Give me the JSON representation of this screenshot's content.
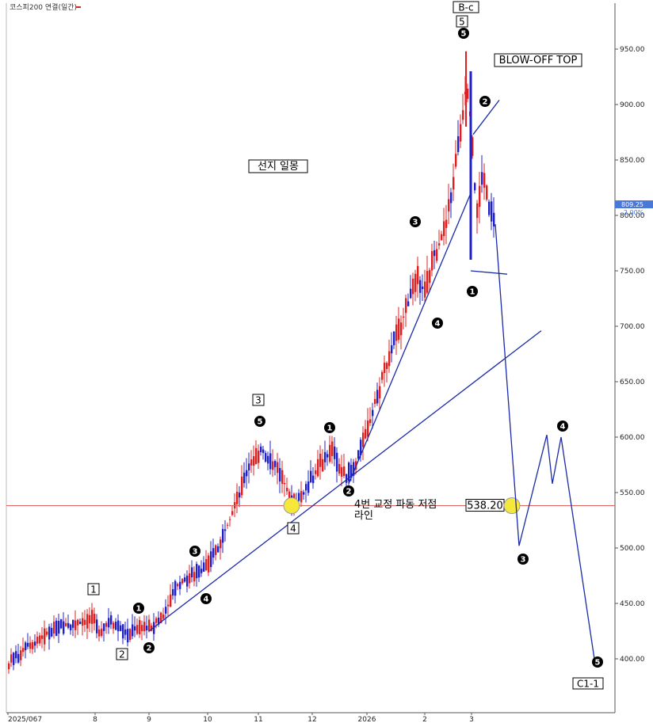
{
  "chart_data": {
    "type": "candlestick",
    "title": "코스피200 연결(일간)",
    "ylim": [
      365,
      985
    ],
    "yticks": [
      400,
      450,
      500,
      550,
      600,
      650,
      700,
      750,
      800,
      850,
      900,
      950
    ],
    "ytick_labels": [
      "400.00",
      "450.00",
      "500.00",
      "550.00",
      "600.00",
      "650.00",
      "700.00",
      "750.00",
      "800.00",
      "850.00",
      "900.00",
      "950.00"
    ],
    "x_labels": [
      "2025/067",
      "8",
      "9",
      "10",
      "11",
      "12",
      "2026",
      "2",
      "3"
    ],
    "last_price": "809.25",
    "last_change": "-2.00%",
    "support_level": 538.2,
    "support_label": "538.20",
    "wave_labels": {
      "top": "B-c",
      "top_degree": "5",
      "circle_1": "1",
      "circle_2": "2",
      "circle_3": "3",
      "circle_4": "4",
      "circle_5": "5",
      "box_1": "1",
      "box_2": "2",
      "box_3": "3",
      "box_4": "4",
      "end": "C1-1"
    },
    "annotations": {
      "blowoff": "BLOW-OFF TOP",
      "preceding": "선지 일몽",
      "support_line1": "4번 교정 파동 저점",
      "support_line2": "라인"
    },
    "legend": "none",
    "grid": false,
    "colors": {
      "up": "#e02020",
      "down": "#2020c8",
      "trend": "#1a2aa8",
      "support": "#e06060",
      "marker": "#f5e83a"
    }
  }
}
